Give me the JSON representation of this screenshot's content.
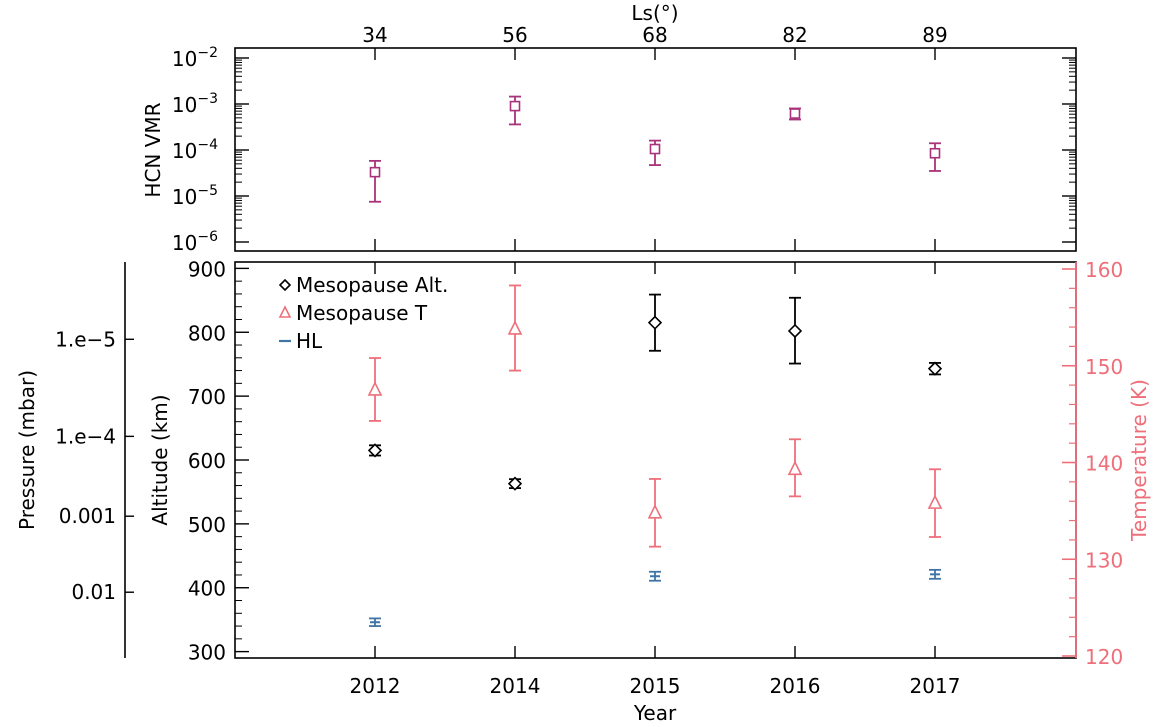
{
  "colors": {
    "axis": "#000000",
    "hcn": "#a8337a",
    "altitude": "#000000",
    "temperature": "#ee6f7a",
    "hl": "#3f74a6"
  },
  "chart_data": [
    {
      "type": "scatter",
      "ylabel": "HCN VMR",
      "y_scale": "log",
      "ylim": [
        1e-06,
        0.01
      ],
      "y_ticks": [
        {
          "base": "10",
          "exp": "-2",
          "value": 0.01
        },
        {
          "base": "10",
          "exp": "-3",
          "value": 0.001
        },
        {
          "base": "10",
          "exp": "-4",
          "value": 0.0001
        },
        {
          "base": "10",
          "exp": "-5",
          "value": 1e-05
        },
        {
          "base": "10",
          "exp": "-6",
          "value": 1e-06
        }
      ],
      "top_axis_label": "Ls(°)",
      "top_axis_ticks": [
        "34",
        "56",
        "68",
        "82",
        "89"
      ],
      "categories": [
        "2012",
        "2014",
        "2015",
        "2016",
        "2017"
      ],
      "series": [
        {
          "marker": "square",
          "values": [
            3.3e-05,
            0.0009,
            0.000105,
            0.00062,
            8.5e-05
          ],
          "err_low": [
            7.5e-06,
            0.00036,
            4.7e-05,
            0.00046,
            3.5e-05
          ],
          "err_high": [
            5.8e-05,
            0.00145,
            0.00016,
            0.0008,
            0.00014
          ]
        }
      ]
    },
    {
      "type": "scatter",
      "xlabel": "Year",
      "categories": [
        "2012",
        "2014",
        "2015",
        "2016",
        "2017"
      ],
      "ylabel": "Altitude (km)",
      "ylim": [
        290,
        910
      ],
      "y_ticks": [
        "300",
        "400",
        "500",
        "600",
        "700",
        "800",
        "900"
      ],
      "y2label": "Temperature (K)",
      "y2lim": [
        120,
        160
      ],
      "y2_ticks": [
        "120",
        "130",
        "140",
        "150",
        "160"
      ],
      "y3label": "Pressure (mbar)",
      "y3_ticks": [
        {
          "label": "1.e−5",
          "altitude": 789
        },
        {
          "label": "1.e−4",
          "altitude": 637
        },
        {
          "label": "0.001",
          "altitude": 512
        },
        {
          "label": "0.01",
          "altitude": 393
        }
      ],
      "legend_position": "top-left",
      "series": [
        {
          "name": "Mesopause Alt.",
          "marker": "diamond",
          "axis": "left",
          "values": [
            615,
            563,
            815,
            802,
            743
          ],
          "err_low": [
            607,
            556,
            771,
            751,
            734
          ],
          "err_high": [
            623,
            570,
            859,
            854,
            752
          ]
        },
        {
          "name": "Mesopause T",
          "marker": "triangle",
          "axis": "right",
          "values": [
            147.5,
            153.8,
            134.8,
            139.3,
            135.8
          ],
          "err_low": [
            144.3,
            149.5,
            131.3,
            136.5,
            132.3
          ],
          "err_high": [
            150.8,
            158.3,
            138.3,
            142.4,
            139.3
          ]
        },
        {
          "name": "HL",
          "marker": "dash",
          "axis": "left",
          "values": [
            346,
            null,
            418,
            null,
            421
          ],
          "err_low": [
            340,
            null,
            411,
            null,
            414
          ],
          "err_high": [
            352,
            null,
            425,
            null,
            428
          ]
        }
      ]
    }
  ]
}
